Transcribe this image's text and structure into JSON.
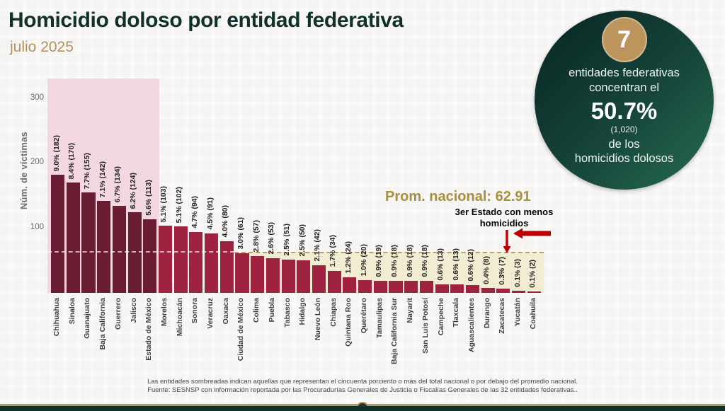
{
  "header": {
    "title": "Homicidio doloso por entidad federativa",
    "subtitle": "julio 2025"
  },
  "badge": {
    "number": "7",
    "line1": "entidades federativas",
    "line2": "concentran el",
    "percent": "50.7%",
    "count": "(1,020)",
    "line3": "de los",
    "line4": "homicidios dolosos"
  },
  "chart_data": {
    "type": "bar",
    "ylabel": "Núm. de víctimas",
    "yticks": [
      100,
      200,
      300
    ],
    "ylim": [
      0,
      330
    ],
    "grid": false,
    "national_average": 62.91,
    "national_average_label": "Prom. nacional: 62.91",
    "shaded_top_count": 7,
    "states": [
      {
        "name": "Chihuahua",
        "pct": "9.0%",
        "count": 182
      },
      {
        "name": "Sinaloa",
        "pct": "8.4%",
        "count": 170
      },
      {
        "name": "Guanajuato",
        "pct": "7.7%",
        "count": 155
      },
      {
        "name": "Baja California",
        "pct": "7.1%",
        "count": 142
      },
      {
        "name": "Guerrero",
        "pct": "6.7%",
        "count": 134
      },
      {
        "name": "Jalisco",
        "pct": "6.2%",
        "count": 124
      },
      {
        "name": "Estado de México",
        "pct": "5.6%",
        "count": 113
      },
      {
        "name": "Morelos",
        "pct": "5.1%",
        "count": 103
      },
      {
        "name": "Michoacán",
        "pct": "5.1%",
        "count": 102
      },
      {
        "name": "Sonora",
        "pct": "4.7%",
        "count": 94
      },
      {
        "name": "Veracruz",
        "pct": "4.5%",
        "count": 91
      },
      {
        "name": "Oaxaca",
        "pct": "4.0%",
        "count": 80
      },
      {
        "name": "Ciudad de México",
        "pct": "3.0%",
        "count": 61
      },
      {
        "name": "Colima",
        "pct": "2.8%",
        "count": 57
      },
      {
        "name": "Puebla",
        "pct": "2.6%",
        "count": 53
      },
      {
        "name": "Tabasco",
        "pct": "2.5%",
        "count": 51
      },
      {
        "name": "Hidalgo",
        "pct": "2.5%",
        "count": 50
      },
      {
        "name": "Nuevo León",
        "pct": "2.1%",
        "count": 42
      },
      {
        "name": "Chiapas",
        "pct": "1.7%",
        "count": 34
      },
      {
        "name": "Quintana Roo",
        "pct": "1.2%",
        "count": 24
      },
      {
        "name": "Querétaro",
        "pct": "1.0%",
        "count": 20
      },
      {
        "name": "Tamaulipas",
        "pct": "0.9%",
        "count": 19
      },
      {
        "name": "Baja California Sur",
        "pct": "0.9%",
        "count": 18
      },
      {
        "name": "Nayarit",
        "pct": "0.9%",
        "count": 18
      },
      {
        "name": "San Luis Potosí",
        "pct": "0.9%",
        "count": 18
      },
      {
        "name": "Campeche",
        "pct": "0.6%",
        "count": 13
      },
      {
        "name": "Tlaxcala",
        "pct": "0.6%",
        "count": 13
      },
      {
        "name": "Aguascalientes",
        "pct": "0.6%",
        "count": 12
      },
      {
        "name": "Durango",
        "pct": "0.4%",
        "count": 8
      },
      {
        "name": "Zacatecas",
        "pct": "0.3%",
        "count": 7
      },
      {
        "name": "Yucatán",
        "pct": "0.1%",
        "count": 3
      },
      {
        "name": "Coahuila",
        "pct": "0.1%",
        "count": 2
      }
    ]
  },
  "annotations": {
    "min3_line1": "3er Estado con menos",
    "min3_line2": "homicidios"
  },
  "footer": {
    "note1": "Las entidades sombreadas indican aquellas que representan el cincuenta porciento o más del total nacional o por debajo del promedio nacional.",
    "note2": "Fuente: SESNSP con información reportada por las Procuradurías Generales de Justicia o Fiscalías Generales de las 32 entidades federativas.."
  },
  "colors": {
    "bar_dark": "#691c32",
    "bar_bright": "#9f2241",
    "region_pink": "#f3d7e2",
    "region_beige": "#f1ecd2",
    "title_green": "#10312b",
    "gold": "#bc955c",
    "avg_text": "#a98e3c",
    "arrow_red": "#c00000"
  }
}
